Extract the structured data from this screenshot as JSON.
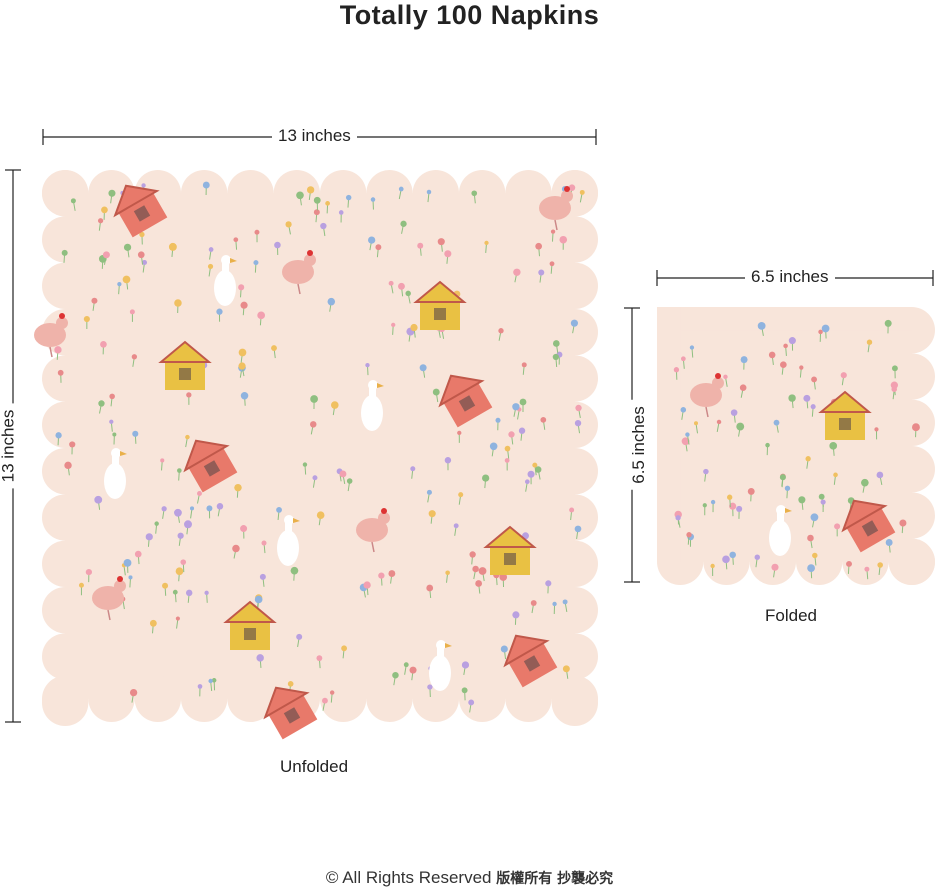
{
  "title": "Totally 100 Napkins",
  "unfolded": {
    "width_label": "13 inches",
    "height_label": "13 inches",
    "caption": "Unfolded"
  },
  "folded": {
    "width_label": "6.5 inches",
    "height_label": "6.5 inches",
    "caption": "Folded"
  },
  "footer": {
    "text": "© All Rights Reserved",
    "cjk": "版權所有 抄襲必究"
  },
  "colors": {
    "napkin": "#f8e5da",
    "house_pink": "#e8796a",
    "house_yellow": "#e9c143",
    "chicken": "#efb3aa"
  }
}
